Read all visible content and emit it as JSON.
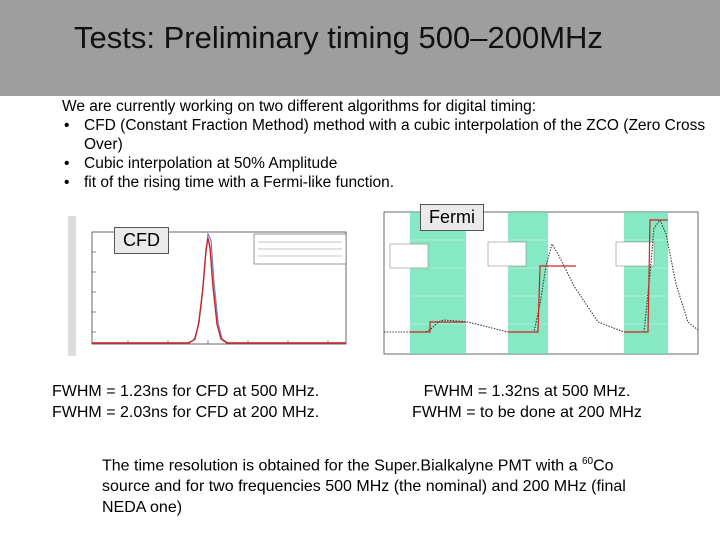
{
  "slide": {
    "title": "Tests: Preliminary timing 500–200MHz",
    "intro": "We are currently working on two different algorithms for digital timing:",
    "bullets": [
      "CFD (Constant Fraction Method) method with a cubic interpolation of the ZCO (Zero Cross Over)",
      "Cubic interpolation at 50% Amplitude",
      "fit of the rising time with a Fermi-like function."
    ],
    "bullet_symbol": "•",
    "cfd_label": "CFD",
    "fermi_label": "Fermi",
    "cfd_results": [
      "FWHM = 1.23ns for CFD at 500 MHz.",
      "FWHM = 2.03ns for CFD at 200 MHz."
    ],
    "fermi_results": [
      "FWHM = 1.32ns  at 500 MHz.",
      "FWHM = to be done at 200 MHz"
    ],
    "closing": {
      "part1": "The time resolution is obtained for the Super.Bialkalyne PMT with a ",
      "isotope_mass": "60",
      "part2": "Co source and for two frequencies 500 MHz (the nominal) and 200 MHz (final NEDA one)"
    }
  },
  "colors": {
    "title_band": "#9e9e9e",
    "fit_region": "#5fe0b0",
    "fit_line": "#d22020",
    "histogram": "#6b7fd0"
  }
}
